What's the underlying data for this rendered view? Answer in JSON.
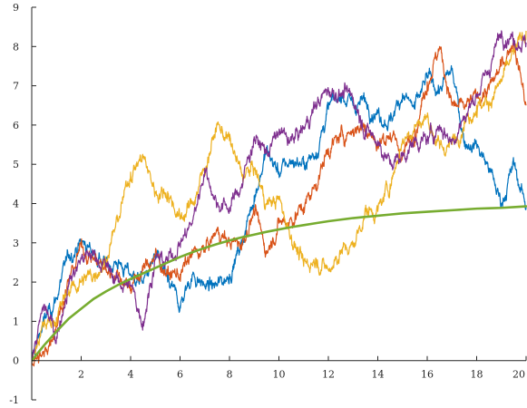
{
  "chart_data": {
    "type": "line",
    "title": "",
    "xlabel": "",
    "ylabel": "",
    "xlim": [
      0,
      20
    ],
    "ylim": [
      -1,
      9
    ],
    "xticks": [
      2,
      4,
      6,
      8,
      10,
      12,
      14,
      16,
      18,
      20
    ],
    "yticks": [
      -1,
      0,
      1,
      2,
      3,
      4,
      5,
      6,
      7,
      8,
      9
    ],
    "grid": false,
    "legend": "none",
    "series": [
      {
        "color": "#0072BD",
        "style": "noisy",
        "x": [
          0,
          0.5,
          1,
          1.5,
          2,
          2.5,
          3,
          3.5,
          4,
          4.5,
          5,
          5.5,
          6,
          6.5,
          7,
          7.5,
          8,
          8.5,
          9,
          9.5,
          10,
          10.5,
          11,
          11.5,
          12,
          12.5,
          13,
          13.5,
          14,
          14.5,
          15,
          15.5,
          16,
          16.5,
          17,
          17.5,
          18,
          18.5,
          19,
          19.5,
          20
        ],
        "values": [
          0,
          1.0,
          1.6,
          2.7,
          3.0,
          2.8,
          2.4,
          2.5,
          2.2,
          2.0,
          2.6,
          2.0,
          1.4,
          2.2,
          1.9,
          1.9,
          2.2,
          3.0,
          4.2,
          5.3,
          4.8,
          5.1,
          5.0,
          5.3,
          6.4,
          6.8,
          6.5,
          6.6,
          6.3,
          6.1,
          6.8,
          6.4,
          7.2,
          6.9,
          7.4,
          5.6,
          5.5,
          4.9,
          4.0,
          5.0,
          3.9
        ]
      },
      {
        "color": "#D95319",
        "style": "noisy",
        "x": [
          0,
          0.5,
          1,
          1.5,
          2,
          2.5,
          3,
          3.5,
          4,
          4.5,
          5,
          5.5,
          6,
          6.5,
          7,
          7.5,
          8,
          8.5,
          9,
          9.5,
          10,
          10.5,
          11,
          11.5,
          12,
          12.5,
          13,
          13.5,
          14,
          14.5,
          15,
          15.5,
          16,
          16.5,
          17,
          17.5,
          18,
          18.5,
          19,
          19.5,
          20
        ],
        "values": [
          0,
          0.1,
          1.0,
          2.0,
          2.9,
          2.6,
          2.3,
          2.2,
          1.9,
          2.3,
          2.7,
          2.2,
          2.2,
          2.7,
          2.8,
          3.3,
          3.0,
          3.0,
          3.8,
          2.8,
          3.5,
          3.6,
          3.9,
          4.5,
          5.4,
          5.7,
          5.9,
          6.0,
          5.5,
          5.8,
          5.2,
          5.9,
          7.1,
          8.0,
          6.5,
          6.4,
          6.7,
          6.9,
          7.5,
          8.2,
          6.5
        ]
      },
      {
        "color": "#EDB120",
        "style": "noisy",
        "x": [
          0,
          0.5,
          1,
          1.5,
          2,
          2.5,
          3,
          3.5,
          4,
          4.5,
          5,
          5.5,
          6,
          6.5,
          7,
          7.5,
          8,
          8.5,
          9,
          9.5,
          10,
          10.5,
          11,
          11.5,
          12,
          12.5,
          13,
          13.5,
          14,
          14.5,
          15,
          15.5,
          16,
          16.5,
          17,
          17.5,
          18,
          18.5,
          19,
          19.5,
          20
        ],
        "values": [
          0,
          0.9,
          1.1,
          1.8,
          2.0,
          2.2,
          2.6,
          3.6,
          4.8,
          5.2,
          4.3,
          4.3,
          3.6,
          4.0,
          4.9,
          6.0,
          5.6,
          4.7,
          4.9,
          4.0,
          4.1,
          3.2,
          2.4,
          2.6,
          2.3,
          2.8,
          2.9,
          3.8,
          3.8,
          4.5,
          5.6,
          6.0,
          6.2,
          5.4,
          5.5,
          6.1,
          6.5,
          6.6,
          7.1,
          7.8,
          8.4
        ]
      },
      {
        "color": "#7E2F8E",
        "style": "noisy",
        "x": [
          0,
          0.5,
          1,
          1.5,
          2,
          2.5,
          3,
          3.5,
          4,
          4.5,
          5,
          5.5,
          6,
          6.5,
          7,
          7.5,
          8,
          8.5,
          9,
          9.5,
          10,
          10.5,
          11,
          11.5,
          12,
          12.5,
          13,
          13.5,
          14,
          14.5,
          15,
          15.5,
          16,
          16.5,
          17,
          17.5,
          18,
          18.5,
          19,
          19.5,
          20
        ],
        "values": [
          0,
          1.4,
          0.6,
          2.0,
          2.6,
          2.7,
          2.4,
          2.0,
          1.9,
          1.0,
          2.6,
          2.5,
          3.0,
          3.5,
          4.9,
          4.0,
          3.9,
          4.5,
          5.7,
          5.3,
          5.8,
          5.6,
          5.9,
          6.5,
          6.9,
          6.8,
          6.7,
          5.9,
          5.6,
          5.0,
          5.2,
          5.6,
          5.6,
          6.0,
          5.6,
          6.2,
          6.8,
          7.4,
          8.4,
          8.2,
          8.1
        ]
      },
      {
        "color": "#77AC30",
        "style": "smooth",
        "x": [
          0,
          0.5,
          1,
          1.5,
          2,
          2.5,
          3,
          3.5,
          4,
          4.5,
          5,
          5.5,
          6,
          6.5,
          7,
          7.5,
          8,
          8.5,
          9,
          9.5,
          10,
          10.5,
          11,
          11.5,
          12,
          12.5,
          13,
          13.5,
          14,
          14.5,
          15,
          15.5,
          16,
          16.5,
          17,
          17.5,
          18,
          18.5,
          19,
          19.5,
          20
        ],
        "values": [
          0,
          0.39,
          0.74,
          1.07,
          1.32,
          1.57,
          1.76,
          1.93,
          2.08,
          2.22,
          2.36,
          2.5,
          2.64,
          2.76,
          2.87,
          2.97,
          3.06,
          3.14,
          3.21,
          3.28,
          3.34,
          3.4,
          3.45,
          3.5,
          3.55,
          3.59,
          3.63,
          3.66,
          3.69,
          3.72,
          3.75,
          3.77,
          3.79,
          3.81,
          3.83,
          3.85,
          3.87,
          3.88,
          3.89,
          3.91,
          3.93
        ]
      }
    ]
  }
}
